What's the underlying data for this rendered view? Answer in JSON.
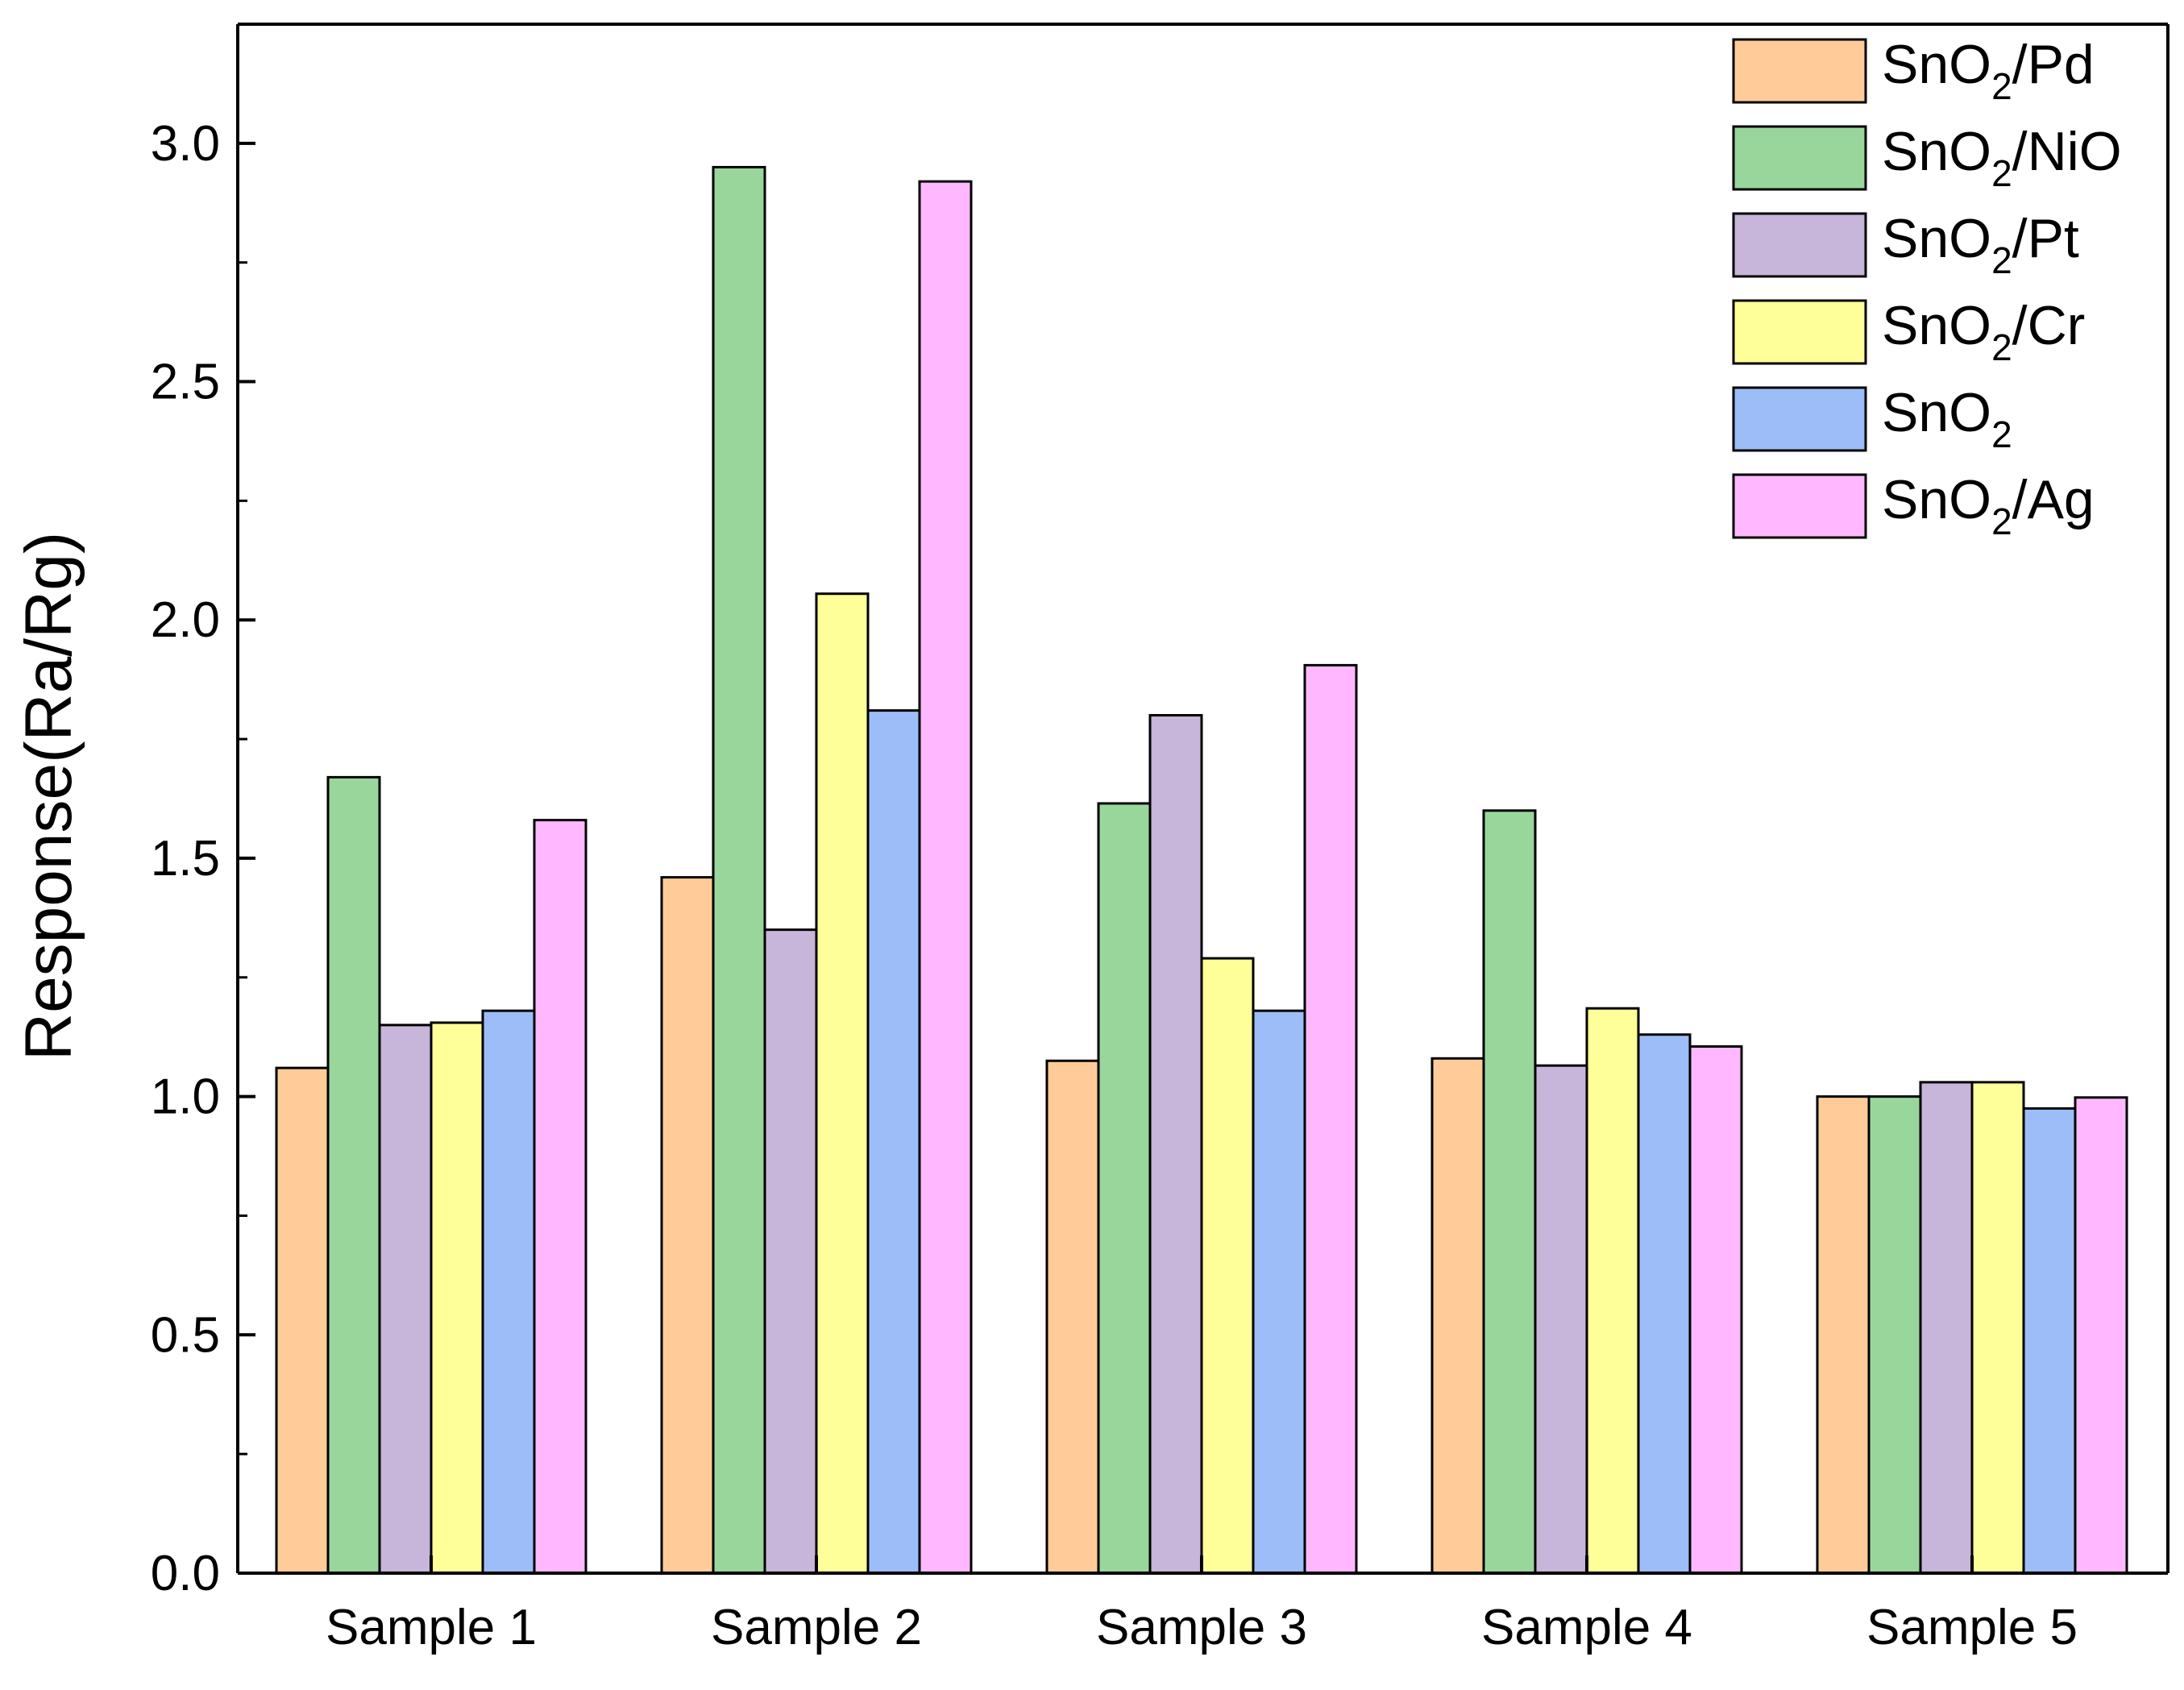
{
  "chart_data": {
    "type": "bar",
    "title": "",
    "xlabel": "",
    "ylabel": "Response(Ra/Rg)",
    "ylim": [
      0,
      3.25
    ],
    "yticks": [
      "0.0",
      "0.5",
      "1.0",
      "1.5",
      "2.0",
      "2.5",
      "3.0"
    ],
    "ytick_values": [
      0,
      0.5,
      1.0,
      1.5,
      2.0,
      2.5,
      3.0
    ],
    "grid": false,
    "legend_position": "top-right",
    "categories": [
      "Sample 1",
      "Sample 2",
      "Sample 3",
      "Sample 4",
      "Sample 5"
    ],
    "series": [
      {
        "name": "SnO2/Pd",
        "label_main": "SnO",
        "label_sub": "2",
        "label_suffix": "/Pd",
        "color": "#FFCC99",
        "values": [
          1.06,
          1.46,
          1.075,
          1.08,
          1.0
        ]
      },
      {
        "name": "SnO2/NiO",
        "label_main": "SnO",
        "label_sub": "2",
        "label_suffix": "/NiO",
        "color": "#99D69C",
        "values": [
          1.67,
          2.95,
          1.615,
          1.6,
          1.0
        ]
      },
      {
        "name": "SnO2/Pt",
        "label_main": "SnO",
        "label_sub": "2",
        "label_suffix": "/Pt",
        "color": "#C7B5DA",
        "values": [
          1.15,
          1.35,
          1.8,
          1.065,
          1.03
        ]
      },
      {
        "name": "SnO2/Cr",
        "label_main": "SnO",
        "label_sub": "2",
        "label_suffix": "/Cr",
        "color": "#FFFF99",
        "values": [
          1.155,
          2.055,
          1.29,
          1.185,
          1.03
        ]
      },
      {
        "name": "SnO2",
        "label_main": "SnO",
        "label_sub": "2",
        "label_suffix": "",
        "color": "#9CBDF7",
        "values": [
          1.18,
          1.81,
          1.18,
          1.13,
          0.975
        ]
      },
      {
        "name": "SnO2/Ag",
        "label_main": "SnO",
        "label_sub": "2",
        "label_suffix": "/Ag",
        "color": "#FFB8FF",
        "values": [
          1.58,
          2.92,
          1.905,
          1.105,
          0.998
        ]
      }
    ]
  }
}
